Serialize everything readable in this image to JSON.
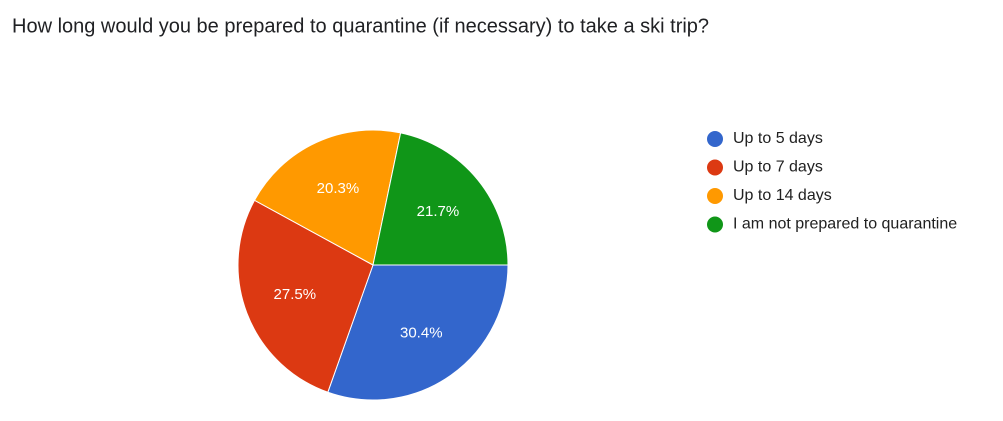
{
  "chart_data": {
    "type": "pie",
    "title": "How long would you be prepared to quarantine (if necessary) to take a ski trip?",
    "categories": [
      "Up to 5 days",
      "Up to 7 days",
      "Up to 14 days",
      "I am not prepared to quarantine"
    ],
    "values": [
      30.4,
      27.5,
      20.3,
      21.7
    ],
    "value_labels": [
      "30.4%",
      "27.5%",
      "20.3%",
      "21.7%"
    ],
    "colors": [
      "#3366cc",
      "#dc3912",
      "#ff9900",
      "#109618"
    ],
    "legend": "right"
  }
}
